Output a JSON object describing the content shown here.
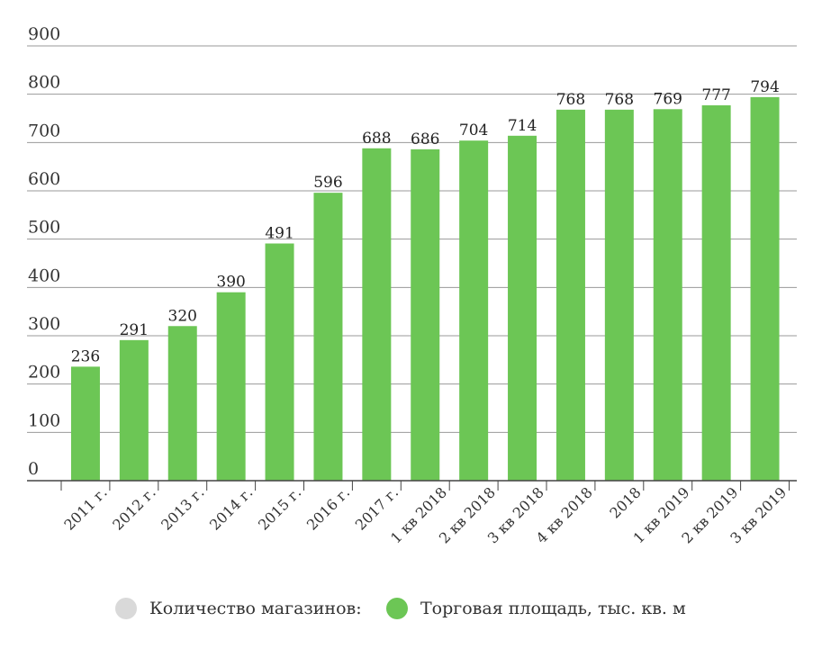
{
  "chart_data": {
    "type": "bar",
    "categories": [
      "2011 г.",
      "2012 г.",
      "2013 г.",
      "2014 г.",
      "2015 г.",
      "2016 г.",
      "2017 г.",
      "1 кв 2018",
      "2 кв 2018",
      "3 кв 2018",
      "4 кв 2018",
      "2018",
      "1 кв 2019",
      "2 кв 2019",
      "3 кв 2019"
    ],
    "series": [
      {
        "name": "Торговая площадь, тыс. кв. м",
        "values": [
          236,
          291,
          320,
          390,
          491,
          596,
          688,
          686,
          704,
          714,
          768,
          768,
          769,
          777,
          794
        ],
        "color": "#6cc655"
      }
    ],
    "y_ticks": [
      "0",
      "100",
      "200",
      "300",
      "400",
      "500",
      "600",
      "700",
      "800",
      "900"
    ],
    "ylim": [
      0,
      900
    ],
    "grid": true,
    "legend_position": "bottom",
    "title": "",
    "xlabel": "",
    "ylabel": ""
  },
  "legend": {
    "items": [
      {
        "label": "Количество магазинов:",
        "color": "#d9d9d9"
      },
      {
        "label": "Торговая площадь, тыс. кв. м",
        "color": "#6cc655"
      }
    ]
  }
}
